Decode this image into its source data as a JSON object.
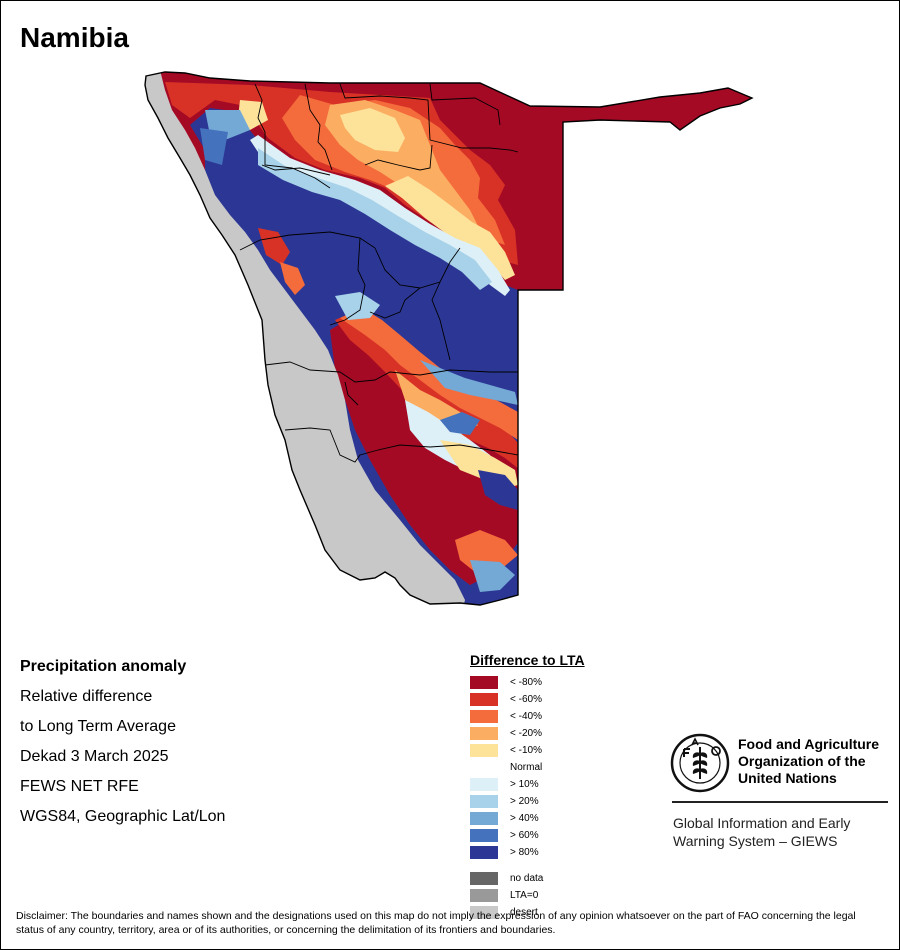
{
  "title": "Namibia",
  "info": {
    "heading": "Precipitation anomaly",
    "line1": "Relative difference",
    "line2": "to Long Term Average",
    "line3": "Dekad 3 March 2025",
    "line4": "FEWS NET RFE",
    "line5": "WGS84, Geographic Lat/Lon"
  },
  "legend": {
    "title": "Difference to LTA",
    "dry_classes": [
      {
        "label": "< -80%",
        "color": "#a50a25"
      },
      {
        "label": "< -60%",
        "color": "#d83226"
      },
      {
        "label": "< -40%",
        "color": "#f46b3c"
      },
      {
        "label": "< -20%",
        "color": "#fbae62"
      },
      {
        "label": "< -10%",
        "color": "#fde29a"
      }
    ],
    "normal_label": "Normal",
    "wet_classes": [
      {
        "label": "> 10%",
        "color": "#def0f7"
      },
      {
        "label": "> 20%",
        "color": "#a7d2ea"
      },
      {
        "label": "> 40%",
        "color": "#74a9d6"
      },
      {
        "label": "> 60%",
        "color": "#4472bd"
      },
      {
        "label": "> 80%",
        "color": "#2c3795"
      }
    ],
    "other_classes": [
      {
        "label": "no data",
        "color": "#666666"
      },
      {
        "label": "LTA=0",
        "color": "#999999"
      },
      {
        "label": "desert",
        "color": "#c8c8c8"
      }
    ]
  },
  "fao": {
    "name": "Food and Agriculture Organization of the United Nations",
    "program": "Global Information and Early Warning System – GIEWS"
  },
  "disclaimer": "Disclaimer: The boundaries and names shown and the designations used on this map do not imply the expression of any opinion whatsoever on the part of FAO concerning the legal status of any country, territory, area or of its authorities, or concerning the delimitation of its frontiers and boundaries."
}
